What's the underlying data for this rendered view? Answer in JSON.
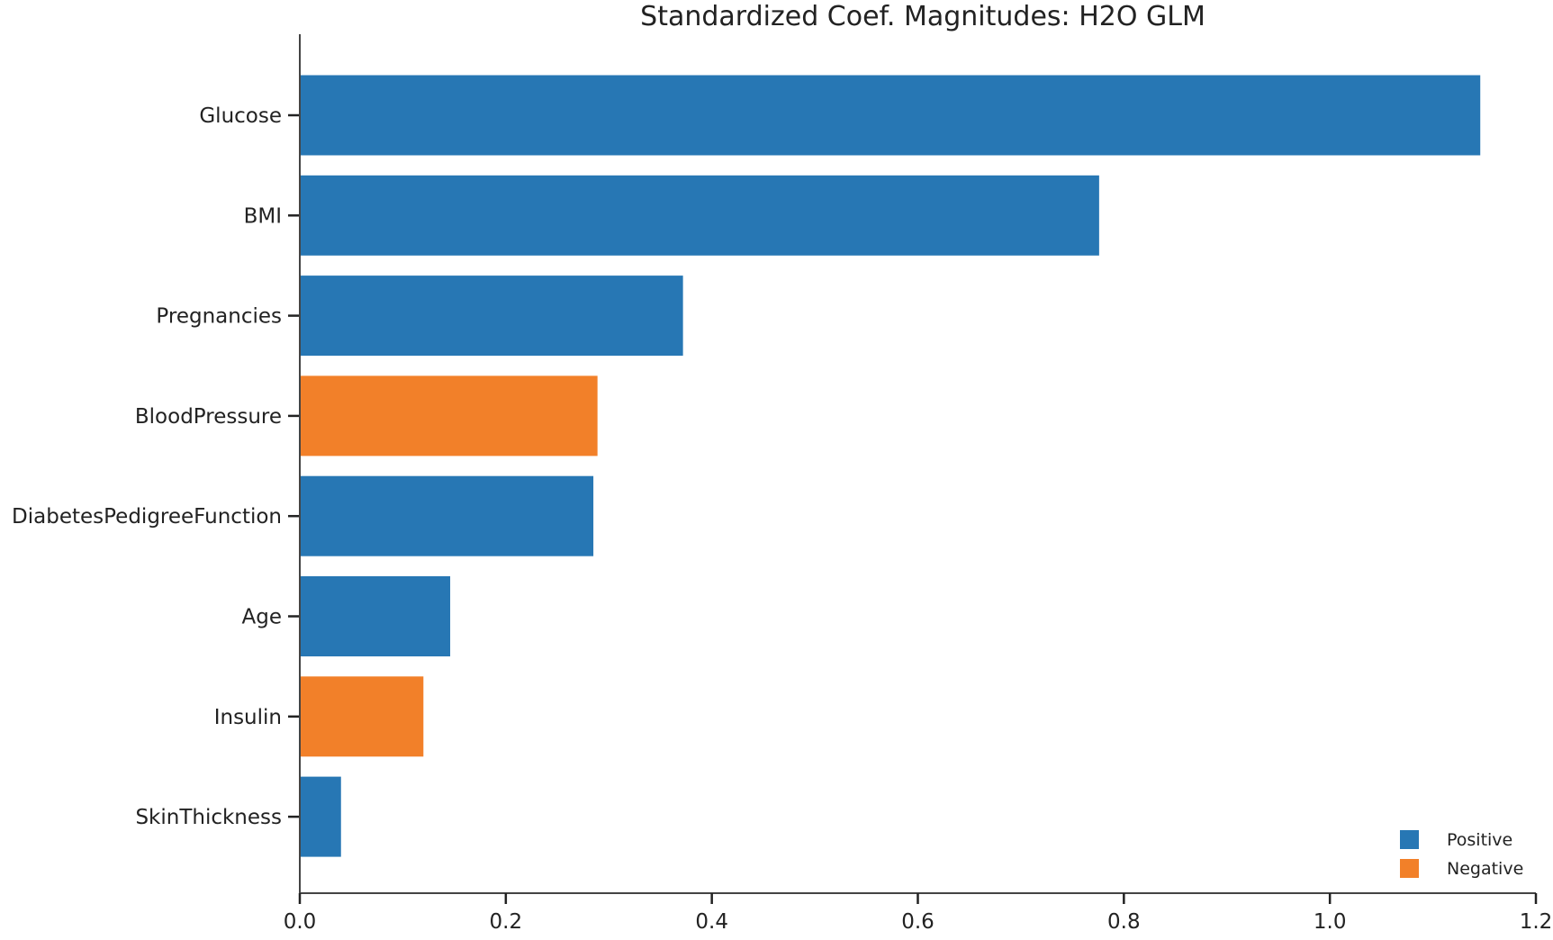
{
  "chart_data": {
    "type": "bar",
    "orientation": "horizontal",
    "title": "Standardized Coef. Magnitudes: H2O GLM",
    "xlabel": "",
    "ylabel": "",
    "xlim": [
      0,
      1.2
    ],
    "xticks": [
      0.0,
      0.2,
      0.4,
      0.6,
      0.8,
      1.0,
      1.2
    ],
    "xtick_labels": [
      "0.0",
      "0.2",
      "0.4",
      "0.6",
      "0.8",
      "1.0",
      "1.2"
    ],
    "grid": false,
    "legend": {
      "placement": "bottom-right",
      "entries": [
        {
          "name": "Positive",
          "color": "#2777b4"
        },
        {
          "name": "Negative",
          "color": "#f28029"
        }
      ]
    },
    "categories": [
      "Glucose",
      "BMI",
      "Pregnancies",
      "BloodPressure",
      "DiabetesPedigreeFunction",
      "Age",
      "Insulin",
      "SkinThickness"
    ],
    "values": [
      1.146,
      0.776,
      0.372,
      0.289,
      0.285,
      0.146,
      0.12,
      0.04
    ],
    "signs": [
      "Positive",
      "Positive",
      "Positive",
      "Negative",
      "Positive",
      "Positive",
      "Negative",
      "Positive"
    ]
  }
}
